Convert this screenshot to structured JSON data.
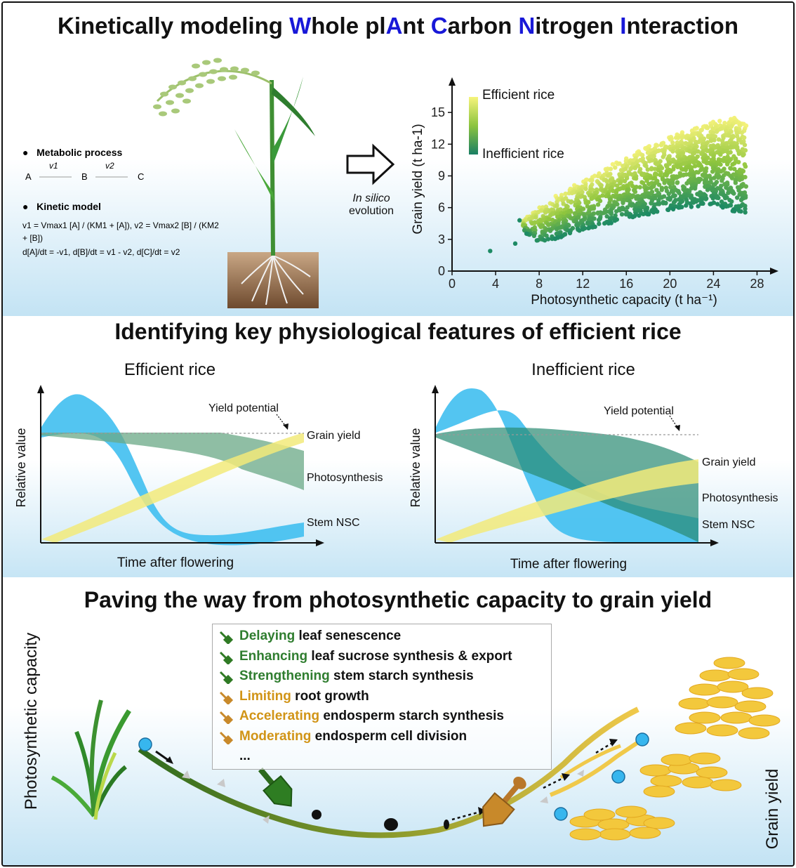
{
  "title": {
    "segments": [
      {
        "text": "Kinetically modeling ",
        "hl": false
      },
      {
        "text": "W",
        "hl": true
      },
      {
        "text": "hole pl",
        "hl": false
      },
      {
        "text": "A",
        "hl": true
      },
      {
        "text": "nt ",
        "hl": false
      },
      {
        "text": "C",
        "hl": true
      },
      {
        "text": "arbon ",
        "hl": false
      },
      {
        "text": "N",
        "hl": true
      },
      {
        "text": "itrogen ",
        "hl": false
      },
      {
        "text": "I",
        "hl": true
      },
      {
        "text": "nteraction",
        "hl": false
      }
    ]
  },
  "model": {
    "metabolic_label": "Metabolic process",
    "kinetic_label": "Kinetic model",
    "species": [
      "A",
      "B",
      "C"
    ],
    "rates": [
      "v1",
      "v2"
    ],
    "eq1": "v1 = Vmax1 [A] / (KM1 + [A]),  v2 = Vmax2 [B] / (KM2 + [B])",
    "eq2": "d[A]/dt = -v1,  d[B]/dt = v1 - v2,  d[C]/dt = v2"
  },
  "evolution_label": {
    "line1": "In silico",
    "line2": "evolution"
  },
  "scatter": {
    "legend_top": "Efficient rice",
    "legend_bottom": "Inefficient rice",
    "colors": {
      "efficient": "#f4f27a",
      "mid": "#8ec53e",
      "inefficient": "#1d8a64"
    }
  },
  "section2_title": "Identifying key physiological features of efficient rice",
  "panel_efficient": {
    "title": "Efficient rice",
    "ylabel": "Relative value",
    "xlabel": "Time after flowering",
    "yield_potential": "Yield potential",
    "grain_yield": "Grain yield",
    "photosynthesis": "Photosynthesis",
    "stem_nsc": "Stem NSC"
  },
  "panel_inefficient": {
    "title": "Inefficient rice",
    "ylabel": "Relative value",
    "xlabel": "Time after flowering",
    "yield_potential": "Yield potential",
    "grain_yield": "Grain yield",
    "photosynthesis": "Photosynthesis",
    "stem_nsc": "Stem NSC"
  },
  "section3_title": "Paving the way from photosynthetic capacity to grain yield",
  "strategies": [
    {
      "verb": "Delaying",
      "rest": " leaf senescence",
      "kind": "green"
    },
    {
      "verb": "Enhancing",
      "rest": " leaf sucrose synthesis & export",
      "kind": "green"
    },
    {
      "verb": "Strengthening",
      "rest": " stem starch synthesis",
      "kind": "green"
    },
    {
      "verb": "Limiting",
      "rest": " root growth",
      "kind": "orange"
    },
    {
      "verb": "Accelerating",
      "rest": " endosperm starch synthesis",
      "kind": "orange"
    },
    {
      "verb": "Moderating",
      "rest": " endosperm cell division",
      "kind": "orange"
    },
    {
      "verb": "",
      "rest": "...",
      "kind": "none"
    }
  ],
  "bottom_left_label": "Photosynthetic capacity",
  "bottom_right_label": "Grain yield",
  "chart_data": {
    "type": "scatter",
    "xlabel": "Photosynthetic capacity (t ha⁻¹)",
    "ylabel": "Grain yield (t ha-1)",
    "xlim": [
      0,
      29
    ],
    "ylim": [
      0,
      17
    ],
    "xticks": [
      0,
      4,
      8,
      12,
      16,
      20,
      24,
      28
    ],
    "yticks": [
      0,
      3,
      6,
      9,
      12,
      15
    ],
    "colorbar": "efficiency (yellow = efficient, dark green = inefficient)",
    "cloud": {
      "upper_edge": [
        [
          6.5,
          4.8
        ],
        [
          8,
          6.2
        ],
        [
          12,
          8.6
        ],
        [
          16,
          10.8
        ],
        [
          20,
          12.8
        ],
        [
          24,
          14.2
        ],
        [
          26,
          14.5
        ],
        [
          27,
          13.8
        ]
      ],
      "lower_edge": [
        [
          6.5,
          3.8
        ],
        [
          8,
          2.6
        ],
        [
          12,
          3.8
        ],
        [
          16,
          4.9
        ],
        [
          20,
          5.8
        ],
        [
          24,
          6.3
        ],
        [
          26,
          5.6
        ],
        [
          27,
          5.2
        ]
      ],
      "point_count_estimate": 1500
    },
    "outliers": [
      [
        3.5,
        1.9
      ],
      [
        5.8,
        2.6
      ],
      [
        6.2,
        4.8
      ]
    ]
  }
}
